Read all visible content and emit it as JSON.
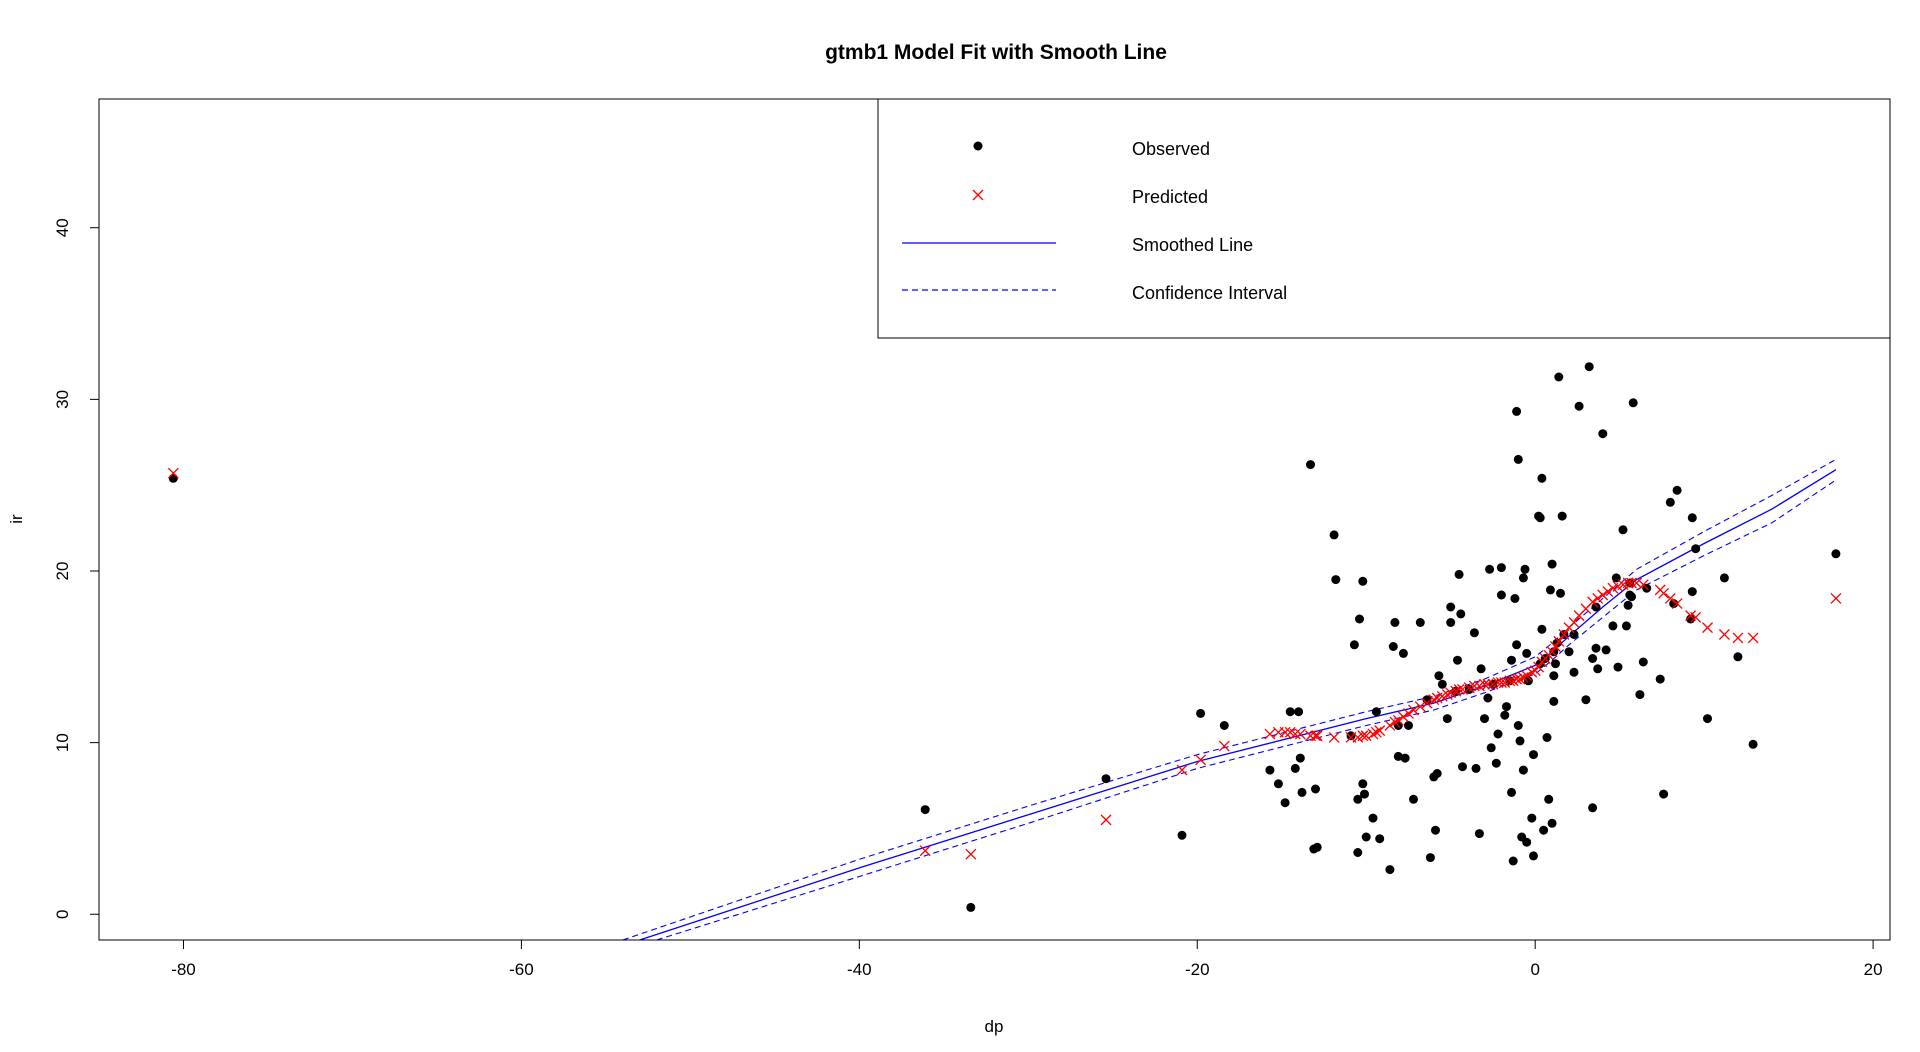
{
  "chart_data": {
    "type": "scatter",
    "title": "gtmb1 Model Fit with Smooth Line",
    "xlabel": "dp",
    "ylabel": "ir",
    "xlim": [
      -85,
      21
    ],
    "ylim": [
      -1.5,
      47.5
    ],
    "x_ticks": [
      -80,
      -60,
      -40,
      -20,
      0,
      20
    ],
    "y_ticks": [
      0,
      10,
      20,
      30,
      40
    ],
    "x_tick_labels": [
      "-80",
      "-60",
      "-40",
      "-20",
      "0",
      "20"
    ],
    "y_tick_labels": [
      "0",
      "10",
      "20",
      "30",
      "40"
    ],
    "grid": false,
    "legend": {
      "position": "top-right",
      "entries": [
        {
          "label": "Observed",
          "symbol": "point",
          "color": "#000000"
        },
        {
          "label": "Predicted",
          "symbol": "cross",
          "color": "#ff0000"
        },
        {
          "label": "Smoothed Line",
          "symbol": "line",
          "color": "#0000ff"
        },
        {
          "label": "Confidence Interval",
          "symbol": "dashed-line",
          "color": "#0000ff"
        }
      ]
    },
    "series": [
      {
        "name": "Observed",
        "kind": "points",
        "color": "#000000",
        "points": [
          [
            -80.6,
            25.4
          ],
          [
            -36.1,
            6.1
          ],
          [
            -33.4,
            0.4
          ],
          [
            -25.4,
            7.9
          ],
          [
            -20.9,
            4.6
          ],
          [
            -19.8,
            11.7
          ],
          [
            -18.4,
            11.0
          ],
          [
            -15.7,
            8.4
          ],
          [
            -15.2,
            7.6
          ],
          [
            -14.8,
            6.5
          ],
          [
            -14.5,
            11.8
          ],
          [
            -14.2,
            8.5
          ],
          [
            -14.0,
            11.8
          ],
          [
            -13.9,
            9.1
          ],
          [
            -13.8,
            7.1
          ],
          [
            -13.3,
            26.2
          ],
          [
            -13.1,
            3.8
          ],
          [
            -13.0,
            7.3
          ],
          [
            -12.9,
            3.9
          ],
          [
            -11.9,
            22.1
          ],
          [
            -11.8,
            19.5
          ],
          [
            -10.9,
            10.4
          ],
          [
            -10.7,
            15.7
          ],
          [
            -10.5,
            6.7
          ],
          [
            -10.5,
            3.6
          ],
          [
            -10.4,
            17.2
          ],
          [
            -10.2,
            7.6
          ],
          [
            -10.2,
            19.4
          ],
          [
            -10.1,
            7.0
          ],
          [
            -10.0,
            4.5
          ],
          [
            -9.6,
            5.6
          ],
          [
            -9.4,
            11.8
          ],
          [
            -9.2,
            4.4
          ],
          [
            -8.6,
            2.6
          ],
          [
            -8.4,
            15.6
          ],
          [
            -8.3,
            17.0
          ],
          [
            -8.1,
            11.0
          ],
          [
            -8.1,
            9.2
          ],
          [
            -7.8,
            15.2
          ],
          [
            -7.7,
            9.1
          ],
          [
            -7.5,
            11.0
          ],
          [
            -7.2,
            6.7
          ],
          [
            -6.8,
            17.0
          ],
          [
            -6.4,
            12.5
          ],
          [
            -6.2,
            3.3
          ],
          [
            -6.0,
            8.0
          ],
          [
            -5.9,
            4.9
          ],
          [
            -5.8,
            8.2
          ],
          [
            -5.7,
            13.9
          ],
          [
            -5.5,
            13.4
          ],
          [
            -5.2,
            11.4
          ],
          [
            -5.0,
            17.9
          ],
          [
            -5.0,
            17.0
          ],
          [
            -4.7,
            13.0
          ],
          [
            -4.6,
            14.8
          ],
          [
            -4.5,
            19.8
          ],
          [
            -4.4,
            17.5
          ],
          [
            -4.3,
            8.6
          ],
          [
            -3.9,
            13.1
          ],
          [
            -3.6,
            16.4
          ],
          [
            -3.5,
            8.5
          ],
          [
            -3.3,
            4.7
          ],
          [
            -3.2,
            14.3
          ],
          [
            -3.0,
            11.4
          ],
          [
            -2.8,
            12.6
          ],
          [
            -2.7,
            20.1
          ],
          [
            -2.6,
            9.7
          ],
          [
            -2.5,
            13.4
          ],
          [
            -2.3,
            8.8
          ],
          [
            -2.2,
            10.5
          ],
          [
            -2.0,
            20.2
          ],
          [
            -2.0,
            18.6
          ],
          [
            -1.8,
            11.6
          ],
          [
            -1.7,
            12.1
          ],
          [
            -1.5,
            13.6
          ],
          [
            -1.4,
            7.1
          ],
          [
            -1.4,
            14.8
          ],
          [
            -1.3,
            3.1
          ],
          [
            -1.2,
            18.4
          ],
          [
            -1.1,
            15.7
          ],
          [
            -1.1,
            29.3
          ],
          [
            -1.0,
            26.5
          ],
          [
            -1.0,
            11.0
          ],
          [
            -0.9,
            10.1
          ],
          [
            -0.8,
            4.5
          ],
          [
            -0.7,
            19.6
          ],
          [
            -0.7,
            8.4
          ],
          [
            -0.6,
            20.1
          ],
          [
            -0.5,
            4.2
          ],
          [
            -0.5,
            15.2
          ],
          [
            -0.4,
            13.6
          ],
          [
            -0.2,
            5.6
          ],
          [
            -0.1,
            3.4
          ],
          [
            -0.1,
            9.3
          ],
          [
            0.2,
            23.2
          ],
          [
            0.3,
            14.6
          ],
          [
            0.3,
            23.1
          ],
          [
            0.4,
            25.4
          ],
          [
            0.4,
            16.6
          ],
          [
            0.5,
            4.9
          ],
          [
            0.6,
            14.9
          ],
          [
            0.7,
            10.3
          ],
          [
            0.8,
            6.7
          ],
          [
            0.9,
            18.9
          ],
          [
            1.0,
            20.4
          ],
          [
            1.0,
            5.3
          ],
          [
            1.1,
            12.4
          ],
          [
            1.1,
            13.9
          ],
          [
            1.1,
            15.3
          ],
          [
            1.2,
            14.6
          ],
          [
            1.3,
            15.8
          ],
          [
            1.4,
            31.3
          ],
          [
            1.5,
            18.7
          ],
          [
            1.6,
            23.2
          ],
          [
            1.7,
            16.3
          ],
          [
            2.0,
            15.3
          ],
          [
            2.3,
            14.1
          ],
          [
            2.3,
            16.3
          ],
          [
            2.6,
            29.6
          ],
          [
            3.0,
            12.5
          ],
          [
            3.2,
            31.9
          ],
          [
            3.4,
            6.2
          ],
          [
            3.4,
            14.9
          ],
          [
            3.6,
            17.9
          ],
          [
            3.6,
            15.5
          ],
          [
            3.7,
            14.3
          ],
          [
            4.0,
            28.0
          ],
          [
            4.2,
            15.4
          ],
          [
            4.6,
            16.8
          ],
          [
            4.8,
            19.6
          ],
          [
            4.9,
            14.4
          ],
          [
            5.2,
            22.4
          ],
          [
            5.4,
            16.8
          ],
          [
            5.5,
            18.0
          ],
          [
            5.6,
            18.6
          ],
          [
            5.6,
            19.3
          ],
          [
            5.7,
            18.5
          ],
          [
            5.8,
            29.8
          ],
          [
            6.2,
            12.8
          ],
          [
            6.4,
            14.7
          ],
          [
            6.6,
            19.0
          ],
          [
            7.4,
            13.7
          ],
          [
            7.6,
            7.0
          ],
          [
            8.0,
            24.0
          ],
          [
            8.2,
            18.1
          ],
          [
            8.4,
            24.7
          ],
          [
            9.2,
            17.2
          ],
          [
            9.3,
            18.8
          ],
          [
            9.3,
            23.1
          ],
          [
            9.5,
            21.3
          ],
          [
            10.2,
            11.4
          ],
          [
            11.2,
            19.6
          ],
          [
            12.0,
            15.0
          ],
          [
            12.9,
            9.9
          ],
          [
            17.8,
            21.0
          ]
        ]
      },
      {
        "name": "Predicted",
        "kind": "crosses",
        "color": "#ff0000",
        "points": [
          [
            -80.6,
            25.7
          ],
          [
            -36.1,
            3.7
          ],
          [
            -33.4,
            3.5
          ],
          [
            -25.4,
            5.5
          ],
          [
            -20.9,
            8.4
          ],
          [
            -19.8,
            9.0
          ],
          [
            -18.4,
            9.8
          ],
          [
            -15.7,
            10.5
          ],
          [
            -15.2,
            10.6
          ],
          [
            -14.8,
            10.6
          ],
          [
            -14.5,
            10.6
          ],
          [
            -14.2,
            10.5
          ],
          [
            -13.9,
            10.5
          ],
          [
            -13.3,
            10.4
          ],
          [
            -13.0,
            10.4
          ],
          [
            -12.9,
            10.4
          ],
          [
            -11.9,
            10.3
          ],
          [
            -10.9,
            10.3
          ],
          [
            -10.5,
            10.3
          ],
          [
            -10.2,
            10.4
          ],
          [
            -10.0,
            10.4
          ],
          [
            -9.6,
            10.5
          ],
          [
            -9.4,
            10.6
          ],
          [
            -9.2,
            10.7
          ],
          [
            -8.6,
            11.0
          ],
          [
            -8.3,
            11.2
          ],
          [
            -8.1,
            11.3
          ],
          [
            -7.8,
            11.5
          ],
          [
            -7.5,
            11.7
          ],
          [
            -7.2,
            11.9
          ],
          [
            -6.8,
            12.1
          ],
          [
            -6.4,
            12.3
          ],
          [
            -6.0,
            12.5
          ],
          [
            -5.8,
            12.6
          ],
          [
            -5.5,
            12.7
          ],
          [
            -5.2,
            12.8
          ],
          [
            -5.0,
            12.9
          ],
          [
            -4.7,
            13.0
          ],
          [
            -4.5,
            13.1
          ],
          [
            -4.3,
            13.1
          ],
          [
            -3.9,
            13.2
          ],
          [
            -3.6,
            13.3
          ],
          [
            -3.3,
            13.3
          ],
          [
            -3.0,
            13.4
          ],
          [
            -2.8,
            13.4
          ],
          [
            -2.5,
            13.4
          ],
          [
            -2.2,
            13.5
          ],
          [
            -2.0,
            13.5
          ],
          [
            -1.8,
            13.5
          ],
          [
            -1.5,
            13.6
          ],
          [
            -1.3,
            13.6
          ],
          [
            -1.1,
            13.7
          ],
          [
            -0.9,
            13.7
          ],
          [
            -0.7,
            13.8
          ],
          [
            -0.5,
            13.9
          ],
          [
            -0.2,
            14.1
          ],
          [
            0.0,
            14.2
          ],
          [
            0.2,
            14.4
          ],
          [
            0.4,
            14.7
          ],
          [
            0.6,
            14.9
          ],
          [
            0.8,
            15.1
          ],
          [
            1.0,
            15.3
          ],
          [
            1.2,
            15.6
          ],
          [
            1.4,
            15.9
          ],
          [
            1.7,
            16.3
          ],
          [
            2.0,
            16.7
          ],
          [
            2.3,
            17.0
          ],
          [
            2.6,
            17.4
          ],
          [
            3.0,
            17.8
          ],
          [
            3.4,
            18.2
          ],
          [
            3.7,
            18.4
          ],
          [
            4.0,
            18.6
          ],
          [
            4.3,
            18.8
          ],
          [
            4.6,
            19.0
          ],
          [
            4.9,
            19.1
          ],
          [
            5.2,
            19.2
          ],
          [
            5.5,
            19.3
          ],
          [
            5.7,
            19.3
          ],
          [
            6.0,
            19.3
          ],
          [
            6.4,
            19.2
          ],
          [
            7.4,
            18.9
          ],
          [
            7.6,
            18.7
          ],
          [
            8.0,
            18.4
          ],
          [
            8.4,
            18.1
          ],
          [
            9.2,
            17.4
          ],
          [
            9.5,
            17.3
          ],
          [
            10.2,
            16.7
          ],
          [
            11.2,
            16.3
          ],
          [
            12.0,
            16.1
          ],
          [
            12.9,
            16.1
          ],
          [
            17.8,
            18.4
          ]
        ]
      },
      {
        "name": "Smoothed Line",
        "kind": "line",
        "color": "#0000ff",
        "points": [
          [
            -53.0,
            -1.5
          ],
          [
            -40.0,
            2.7
          ],
          [
            -30.0,
            5.8
          ],
          [
            -20.0,
            8.9
          ],
          [
            -10.0,
            11.4
          ],
          [
            -6.0,
            12.3
          ],
          [
            -3.0,
            13.3
          ],
          [
            0.0,
            14.5
          ],
          [
            1.0,
            15.3
          ],
          [
            2.0,
            16.2
          ],
          [
            4.0,
            17.9
          ],
          [
            6.0,
            19.5
          ],
          [
            10.0,
            21.6
          ],
          [
            14.0,
            23.6
          ],
          [
            17.8,
            25.9
          ]
        ]
      },
      {
        "name": "Confidence Interval",
        "kind": "dashed-lines",
        "color": "#0000ff",
        "upper": [
          [
            -54.0,
            -1.5
          ],
          [
            -40.0,
            3.2
          ],
          [
            -30.0,
            6.3
          ],
          [
            -20.0,
            9.3
          ],
          [
            -10.0,
            11.8
          ],
          [
            -6.0,
            12.7
          ],
          [
            -3.0,
            13.7
          ],
          [
            0.0,
            15.0
          ],
          [
            1.0,
            15.8
          ],
          [
            2.0,
            16.7
          ],
          [
            4.0,
            18.4
          ],
          [
            6.0,
            20.1
          ],
          [
            10.0,
            22.3
          ],
          [
            14.0,
            24.4
          ],
          [
            17.8,
            26.5
          ]
        ],
        "lower": [
          [
            -52.0,
            -1.5
          ],
          [
            -40.0,
            2.2
          ],
          [
            -30.0,
            5.3
          ],
          [
            -20.0,
            8.5
          ],
          [
            -10.0,
            11.0
          ],
          [
            -6.0,
            11.9
          ],
          [
            -3.0,
            12.9
          ],
          [
            0.0,
            14.0
          ],
          [
            1.0,
            14.8
          ],
          [
            2.0,
            15.7
          ],
          [
            4.0,
            17.3
          ],
          [
            6.0,
            18.9
          ],
          [
            10.0,
            20.9
          ],
          [
            14.0,
            22.8
          ],
          [
            17.8,
            25.3
          ]
        ]
      }
    ]
  }
}
